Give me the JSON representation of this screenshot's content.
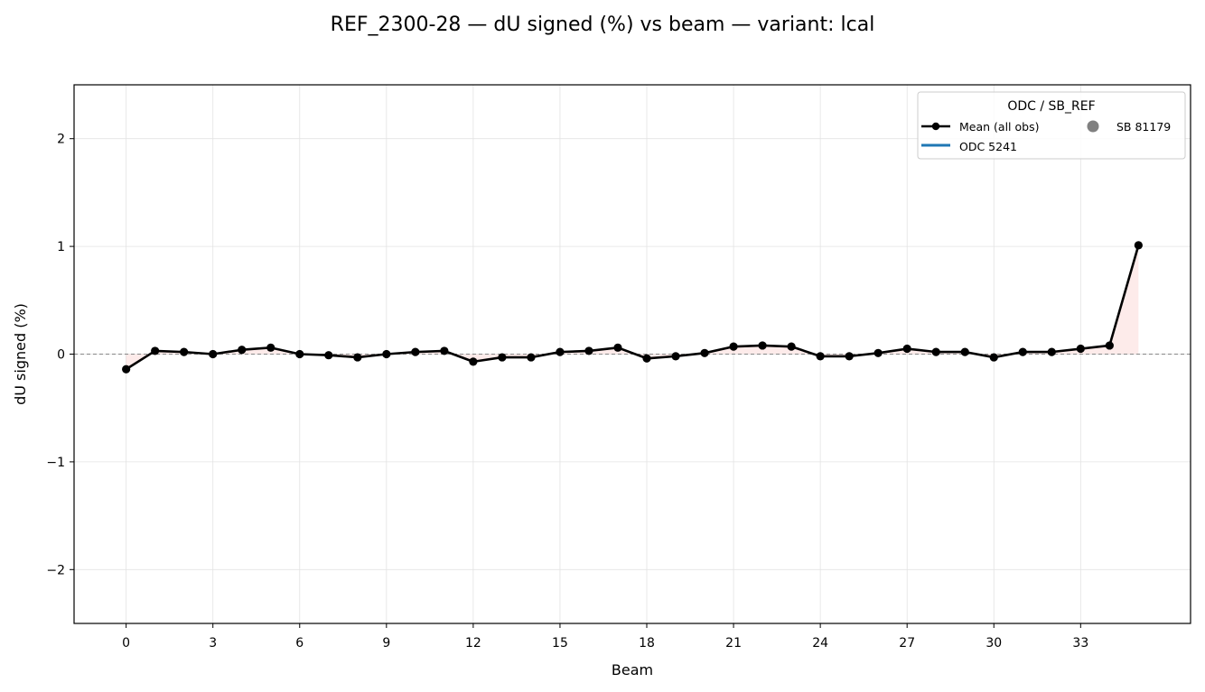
{
  "chart_data": {
    "type": "line",
    "title": "REF_2300-28  —  dU signed (%) vs beam  —  variant: lcal",
    "xlabel": "Beam",
    "ylabel": "dU signed (%)",
    "xlim": [
      -1.8,
      36.8
    ],
    "ylim": [
      -2.5,
      2.5
    ],
    "xticks": [
      0,
      3,
      6,
      9,
      12,
      15,
      18,
      21,
      24,
      27,
      30,
      33
    ],
    "yticks": [
      -2,
      -1,
      0,
      1,
      2
    ],
    "ytick_labels": [
      "−2",
      "−1",
      "0",
      "1",
      "2"
    ],
    "grid": true,
    "reference_line_y": 0,
    "legend": {
      "title": "ODC / SB_REF",
      "placement": "top-right",
      "entries": [
        {
          "label": "Mean (all obs)",
          "kind": "line-marker",
          "color": "#000000"
        },
        {
          "label": "SB 81179",
          "kind": "marker",
          "color": "#808080"
        },
        {
          "label": "ODC 5241",
          "kind": "line",
          "color": "#1f77b4"
        }
      ]
    },
    "series": [
      {
        "name": "Mean (all obs)",
        "color": "#000000",
        "x": [
          0,
          1,
          2,
          3,
          4,
          5,
          6,
          7,
          8,
          9,
          10,
          11,
          12,
          13,
          14,
          15,
          16,
          17,
          18,
          19,
          20,
          21,
          22,
          23,
          24,
          25,
          26,
          27,
          28,
          29,
          30,
          31,
          32,
          33,
          34,
          35
        ],
        "y": [
          -0.14,
          0.03,
          0.02,
          0.0,
          0.04,
          0.06,
          0.0,
          -0.01,
          -0.03,
          0.0,
          0.02,
          0.03,
          -0.07,
          -0.03,
          -0.03,
          0.02,
          0.03,
          0.06,
          -0.04,
          -0.02,
          0.01,
          0.07,
          0.08,
          0.07,
          -0.02,
          -0.02,
          0.01,
          0.05,
          0.02,
          0.02,
          -0.03,
          0.02,
          0.02,
          0.05,
          0.08,
          1.01
        ]
      }
    ],
    "fill_color": "#f4a6a0"
  }
}
